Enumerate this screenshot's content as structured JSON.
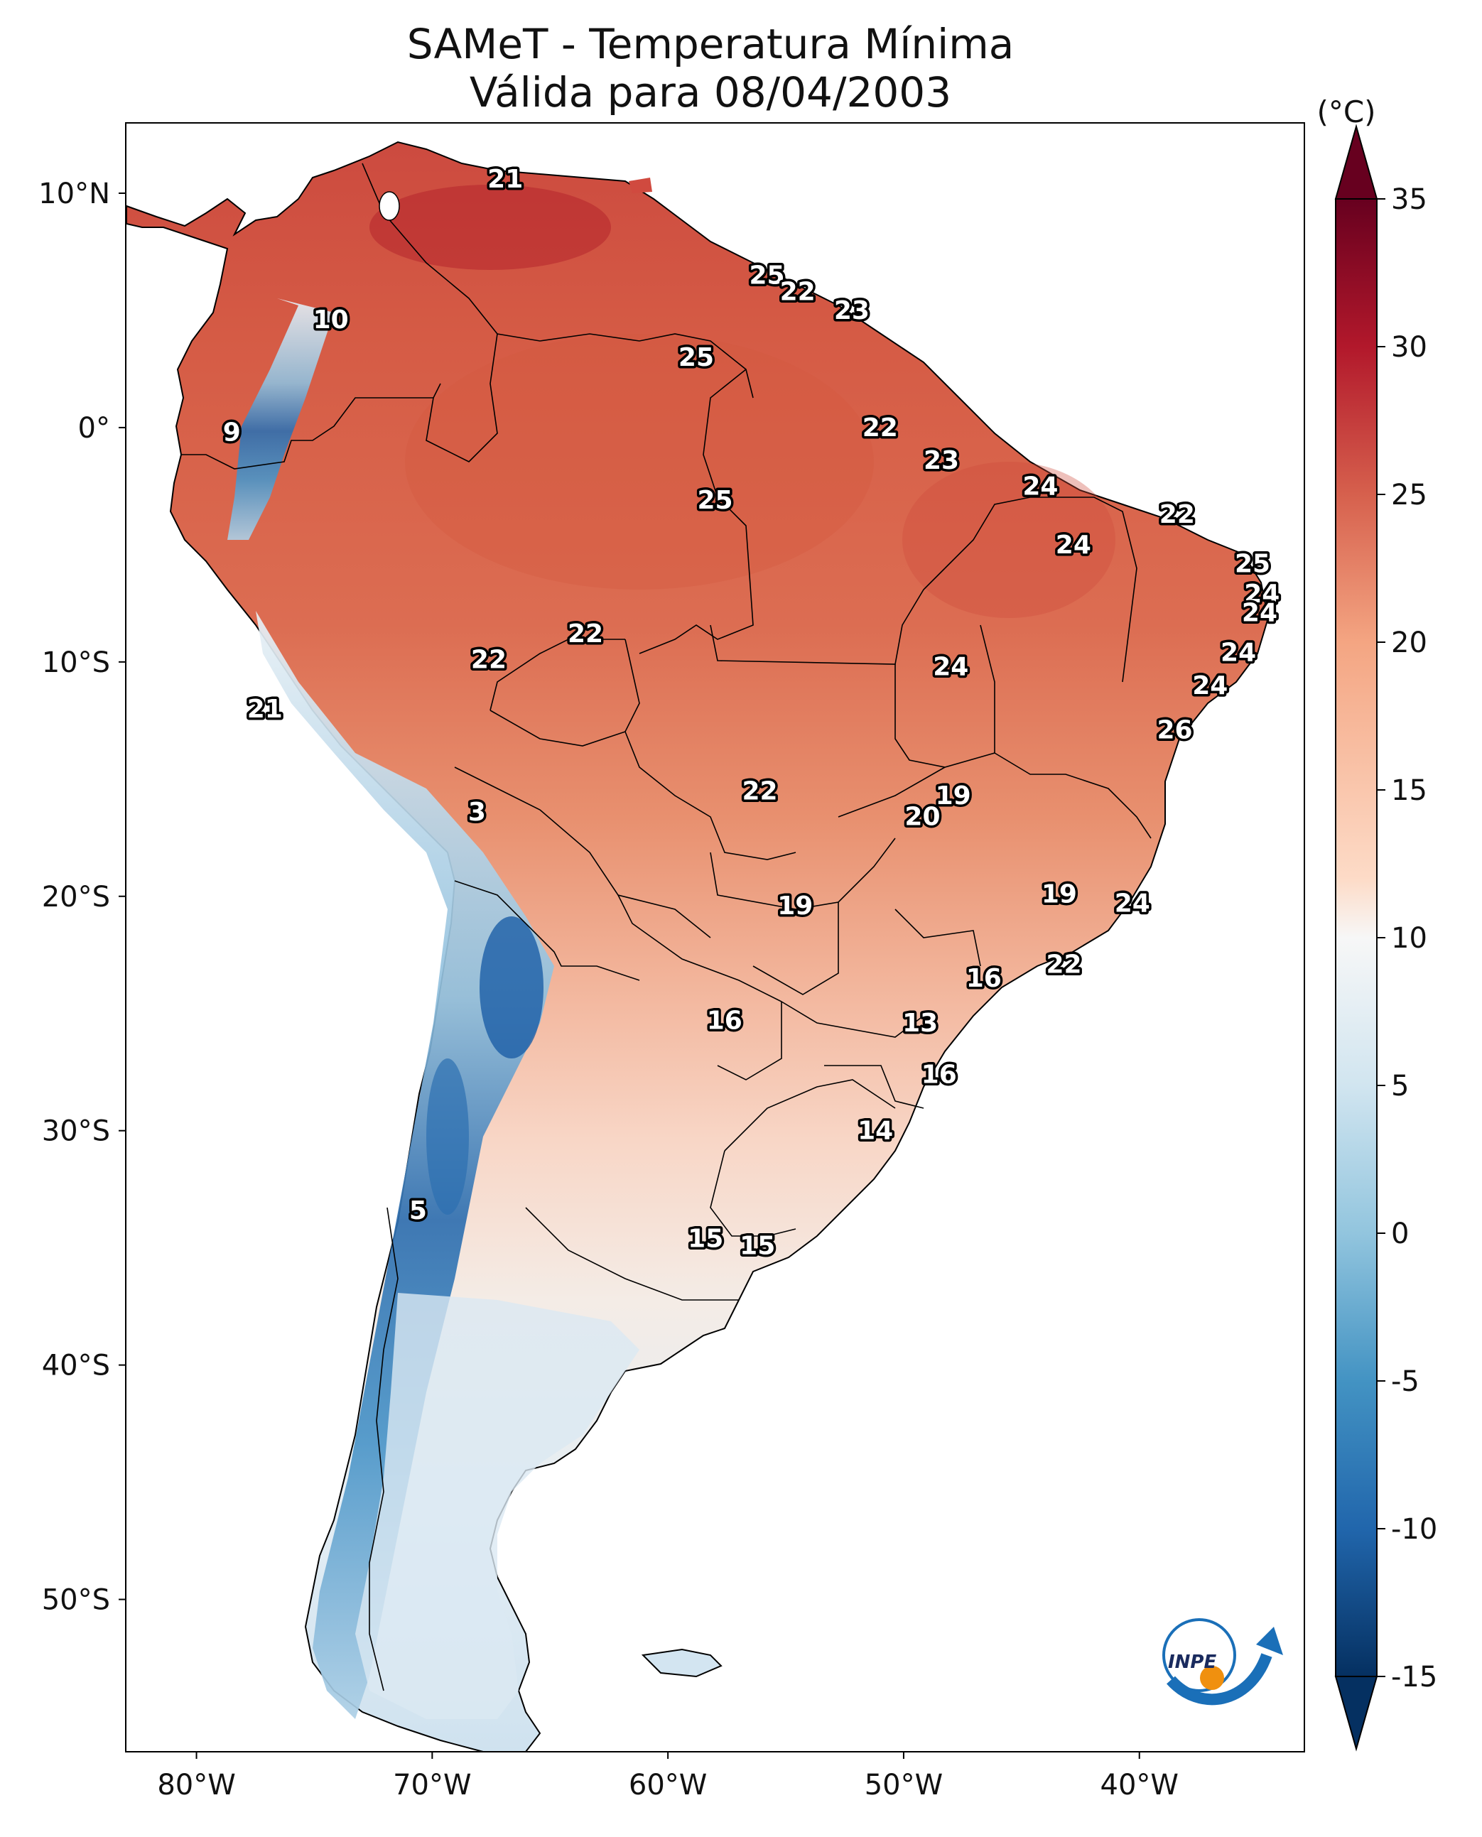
{
  "title": "SAMeT - Temperatura Mínima",
  "subtitle": "Válida para 08/04/2003",
  "colorbar": {
    "unit_label": "(°C)",
    "ticks": [
      "35",
      "30",
      "25",
      "20",
      "15",
      "10",
      "5",
      "0",
      "-5",
      "-10",
      "-15"
    ],
    "min": -15,
    "max": 35,
    "colors": {
      "c35": "#67001f",
      "c30": "#b2182b",
      "c25": "#d6604d",
      "c20": "#f4a582",
      "c12": "#fddbc7",
      "c10": "#f7f7f7",
      "c5": "#d1e5f0",
      "c0": "#92c5de",
      "cm5": "#4393c3",
      "cm10": "#2166ac",
      "cm15": "#053061"
    }
  },
  "axes": {
    "lat_labels": [
      "10°N",
      "0°",
      "10°S",
      "20°S",
      "30°S",
      "40°S",
      "50°S"
    ],
    "lon_labels": [
      "80°W",
      "70°W",
      "60°W",
      "50°W",
      "40°W"
    ],
    "lon_range": [
      -83,
      -33
    ],
    "lat_range": [
      -56.5,
      13
    ]
  },
  "station_values": [
    {
      "lon": -66.9,
      "lat": 10.6,
      "value": "21"
    },
    {
      "lon": -55.8,
      "lat": 6.5,
      "value": "25"
    },
    {
      "lon": -54.5,
      "lat": 5.8,
      "value": "22"
    },
    {
      "lon": -52.2,
      "lat": 5.0,
      "value": "23"
    },
    {
      "lon": -74.3,
      "lat": 4.6,
      "value": "10"
    },
    {
      "lon": -58.8,
      "lat": 3.0,
      "value": "25"
    },
    {
      "lon": -78.5,
      "lat": -0.2,
      "value": "9"
    },
    {
      "lon": -51.0,
      "lat": 0.0,
      "value": "22"
    },
    {
      "lon": -48.4,
      "lat": -1.4,
      "value": "23"
    },
    {
      "lon": -58.0,
      "lat": -3.1,
      "value": "25"
    },
    {
      "lon": -44.2,
      "lat": -2.5,
      "value": "24"
    },
    {
      "lon": -38.4,
      "lat": -3.7,
      "value": "22"
    },
    {
      "lon": -42.8,
      "lat": -5.0,
      "value": "24"
    },
    {
      "lon": -35.2,
      "lat": -5.8,
      "value": "25"
    },
    {
      "lon": -34.8,
      "lat": -7.1,
      "value": "24"
    },
    {
      "lon": -34.9,
      "lat": -7.9,
      "value": "24"
    },
    {
      "lon": -63.5,
      "lat": -8.8,
      "value": "22"
    },
    {
      "lon": -67.6,
      "lat": -9.9,
      "value": "22"
    },
    {
      "lon": -48.0,
      "lat": -10.2,
      "value": "24"
    },
    {
      "lon": -35.8,
      "lat": -9.6,
      "value": "24"
    },
    {
      "lon": -37.0,
      "lat": -11.0,
      "value": "24"
    },
    {
      "lon": -77.1,
      "lat": -12.0,
      "value": "21"
    },
    {
      "lon": -38.5,
      "lat": -12.9,
      "value": "26"
    },
    {
      "lon": -56.1,
      "lat": -15.5,
      "value": "22"
    },
    {
      "lon": -47.9,
      "lat": -15.7,
      "value": "19"
    },
    {
      "lon": -49.2,
      "lat": -16.6,
      "value": "20"
    },
    {
      "lon": -68.1,
      "lat": -16.4,
      "value": "3"
    },
    {
      "lon": -43.4,
      "lat": -19.9,
      "value": "19"
    },
    {
      "lon": -54.6,
      "lat": -20.4,
      "value": "19"
    },
    {
      "lon": -40.3,
      "lat": -20.3,
      "value": "24"
    },
    {
      "lon": -43.2,
      "lat": -22.9,
      "value": "22"
    },
    {
      "lon": -46.6,
      "lat": -23.5,
      "value": "16"
    },
    {
      "lon": -57.6,
      "lat": -25.3,
      "value": "16"
    },
    {
      "lon": -49.3,
      "lat": -25.4,
      "value": "13"
    },
    {
      "lon": -48.5,
      "lat": -27.6,
      "value": "16"
    },
    {
      "lon": -51.2,
      "lat": -30.0,
      "value": "14"
    },
    {
      "lon": -70.6,
      "lat": -33.4,
      "value": "5"
    },
    {
      "lon": -58.4,
      "lat": -34.6,
      "value": "15"
    },
    {
      "lon": -56.2,
      "lat": -34.9,
      "value": "15"
    }
  ],
  "logo": {
    "text": "INPE"
  }
}
